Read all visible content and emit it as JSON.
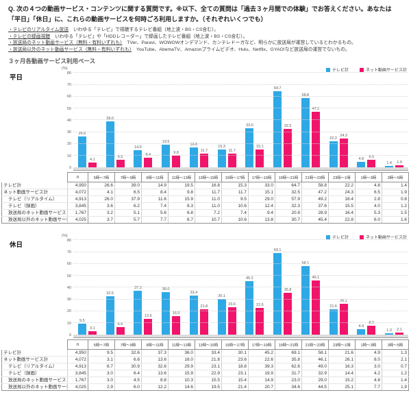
{
  "header": {
    "question_line1": "Q. 次の４つの動画サービス・コンテンツに関する質問です。※以下、全ての質問は「過去３ヶ月間での体験」でお答えください。あなたは",
    "question_line2": "「平日」「休日」に、これらの動画サービスを何時ごろ利用しますか。（それぞれいくつでも）",
    "bullets": [
      {
        "lead": "・テレビのリアルタイム放送",
        "rest": "　いわゆる「テレビ」で視聴するテレビ番組（地上波・BS・CS含む）。"
      },
      {
        "lead": "・テレビの録画視聴",
        "rest": "　いわゆる「テレビ」や「HDDレコーダー」で録画したテレビ番組（地上波・BS・CS含む）。"
      },
      {
        "lead": "・放送局のネット動画サービス（無料・有料いずれも）",
        "rest": "　TVer、Paravi、WOWOWオンデマンド、カンテレドーガなど、明らかに放送局が運営しているとわかるもの。"
      },
      {
        "lead": "・放送局以外のネット動画サービス（無料・有料いずれも）",
        "rest": "　YouTube、AbemaTV、Amazonプライムビデオ、Hulu、Netflix、GYAO!など放送局の運営でないもの。"
      }
    ],
    "base_note": "３ヶ月各動画サービス利用ベース"
  },
  "legend": {
    "tv_label": "テレビ計",
    "net_label": "ネット動画サービス計"
  },
  "colors": {
    "tv": "#2FA8E6",
    "net": "#F0146B"
  },
  "axis": {
    "unit": "(%)",
    "max": 80,
    "ticks": [
      80,
      70,
      60,
      50,
      40,
      30,
      20,
      10,
      0
    ]
  },
  "time_slots": [
    "5時～7時",
    "7時～9時",
    "9時～11時",
    "11時～13時",
    "13時～15時",
    "15時～17時",
    "17時～19時",
    "19時～21時",
    "21時～23時",
    "23時～1時",
    "1時～3時",
    "3時～5時"
  ],
  "table_n_header": "n",
  "chart_data": [
    {
      "type": "bar",
      "section": "平日",
      "categories": [
        "5時～7時",
        "7時～9時",
        "9時～11時",
        "11時～13時",
        "13時～15時",
        "15時～17時",
        "17時～19時",
        "19時～21時",
        "21時～23時",
        "23時～1時",
        "1時～3時",
        "3時～5時"
      ],
      "series": [
        {
          "name": "テレビ計",
          "values": [
            26.6,
            39.0,
            14.9,
            19.5,
            16.8,
            15.3,
            33.0,
            64.7,
            58.8,
            22.2,
            4.8,
            1.4
          ]
        },
        {
          "name": "ネット動画サービス計",
          "values": [
            4.1,
            6.5,
            8.4,
            9.8,
            11.7,
            11.7,
            15.1,
            32.5,
            47.2,
            24.3,
            6.5,
            1.9
          ]
        }
      ],
      "ylabel": "(%)",
      "ylim": [
        0,
        80
      ],
      "grid": true,
      "legend_position": "top-right"
    },
    {
      "type": "bar",
      "section": "休日",
      "categories": [
        "5時～7時",
        "7時～9時",
        "9時～11時",
        "11時～13時",
        "13時～15時",
        "15時～17時",
        "17時～19時",
        "19時～21時",
        "21時～23時",
        "23時～1時",
        "1時～3時",
        "3時～5時"
      ],
      "series": [
        {
          "name": "テレビ計",
          "values": [
            9.5,
            32.6,
            37.3,
            36.0,
            33.4,
            30.1,
            45.2,
            69.1,
            58.1,
            21.6,
            4.9,
            1.3
          ]
        },
        {
          "name": "ネット動画サービス計",
          "values": [
            3.1,
            6.6,
            13.6,
            16.0,
            21.8,
            23.6,
            22.6,
            35.8,
            46.1,
            26.1,
            8.0,
            2.1
          ]
        }
      ],
      "ylabel": "(%)",
      "ylim": [
        0,
        80
      ],
      "grid": true,
      "legend_position": "top-right"
    }
  ],
  "sections": [
    {
      "label": "平日",
      "table": {
        "rows": [
          {
            "label": "テレビ計",
            "indent": false,
            "n": "4,950",
            "values": [
              26.6,
              39.0,
              14.9,
              19.5,
              16.8,
              15.3,
              33.0,
              64.7,
              58.8,
              22.2,
              4.8,
              1.4
            ]
          },
          {
            "label": "ネット動画サービス計",
            "indent": false,
            "n": "4,072",
            "values": [
              4.1,
              6.5,
              8.4,
              9.8,
              11.7,
              11.7,
              15.1,
              32.5,
              47.2,
              24.3,
              6.5,
              1.9
            ]
          },
          {
            "label": "テレビ（リアルタイム）",
            "indent": true,
            "n": "4,913",
            "values": [
              26.0,
              37.9,
              11.6,
              15.9,
              11.0,
              9.5,
              29.0,
              57.9,
              49.2,
              16.4,
              2.8,
              0.8
            ]
          },
          {
            "label": "テレビ（録画）",
            "indent": true,
            "n": "3,845",
            "values": [
              3.6,
              6.2,
              7.4,
              8.3,
              11.0,
              10.6,
              12.4,
              32.3,
              37.6,
              15.5,
              4.0,
              1.2
            ]
          },
          {
            "label": "放送局のネット動画サービス",
            "indent": true,
            "n": "1,767",
            "values": [
              3.2,
              5.1,
              5.6,
              6.8,
              7.2,
              7.4,
              9.4,
              20.9,
              28.9,
              16.4,
              5.3,
              1.5
            ]
          },
          {
            "label": "放送局以外のネット動画サービス",
            "indent": true,
            "n": "4,025",
            "values": [
              3.7,
              5.7,
              7.7,
              8.7,
              10.7,
              10.6,
              13.8,
              30.7,
              45.4,
              22.8,
              6.0,
              1.6
            ]
          }
        ]
      }
    },
    {
      "label": "休日",
      "table": {
        "rows": [
          {
            "label": "テレビ計",
            "indent": false,
            "n": "4,950",
            "values": [
              9.5,
              32.6,
              37.3,
              36.0,
              33.4,
              30.1,
              45.2,
              69.1,
              58.1,
              21.6,
              4.9,
              1.3
            ]
          },
          {
            "label": "ネット動画サービス計",
            "indent": false,
            "n": "4,072",
            "values": [
              3.1,
              6.6,
              13.6,
              16.0,
              21.8,
              23.6,
              22.6,
              35.8,
              46.1,
              26.1,
              8.0,
              2.1
            ]
          },
          {
            "label": "テレビ（リアルタイム）",
            "indent": true,
            "n": "4,913",
            "values": [
              8.7,
              30.9,
              32.6,
              29.9,
              23.1,
              18.8,
              39.3,
              62.6,
              49.0,
              16.3,
              3.0,
              0.7
            ]
          },
          {
            "label": "テレビ（録画）",
            "indent": true,
            "n": "3,845",
            "values": [
              3.0,
              6.4,
              13.6,
              15.9,
              22.9,
              23.1,
              19.9,
              31.7,
              32.9,
              14.4,
              4.2,
              1.2
            ]
          },
          {
            "label": "放送局のネット動画サービス",
            "indent": true,
            "n": "1,767",
            "values": [
              3.0,
              4.5,
              8.8,
              10.3,
              15.5,
              15.4,
              14.9,
              23.0,
              29.0,
              15.2,
              4.8,
              1.4
            ]
          },
          {
            "label": "放送局以外のネット動画サービス",
            "indent": true,
            "n": "4,025",
            "values": [
              2.9,
              6.0,
              12.2,
              14.6,
              19.5,
              21.4,
              20.7,
              34.6,
              44.5,
              25.1,
              7.7,
              1.9
            ]
          }
        ]
      }
    }
  ]
}
